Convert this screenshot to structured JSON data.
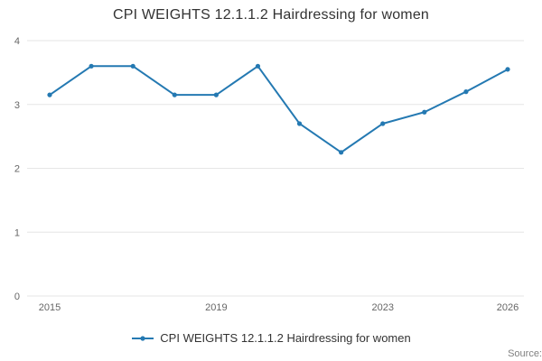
{
  "title": "CPI WEIGHTS 12.1.1.2 Hairdressing for women",
  "legend": {
    "label": "CPI WEIGHTS 12.1.1.2 Hairdressing for women"
  },
  "source_label": "Source:",
  "colors": {
    "line": "#2479b2",
    "gridline": "#e6e6e6",
    "axis_text": "#666666"
  },
  "chart_data": {
    "type": "line",
    "title": "CPI WEIGHTS 12.1.1.2 Hairdressing for women",
    "x": [
      2015,
      2016,
      2017,
      2018,
      2019,
      2020,
      2021,
      2022,
      2023,
      2024,
      2025,
      2026
    ],
    "values": [
      3.15,
      3.6,
      3.6,
      3.15,
      3.15,
      3.6,
      2.7,
      2.25,
      2.7,
      2.88,
      3.2,
      3.55
    ],
    "xlabel": "",
    "ylabel": "",
    "xlim": [
      2015,
      2026
    ],
    "ylim": [
      0,
      4
    ],
    "yticks": [
      0,
      1,
      2,
      3,
      4
    ],
    "xticks": [
      2015,
      2019,
      2023,
      2026
    ],
    "grid": true,
    "legend_position": "bottom"
  }
}
